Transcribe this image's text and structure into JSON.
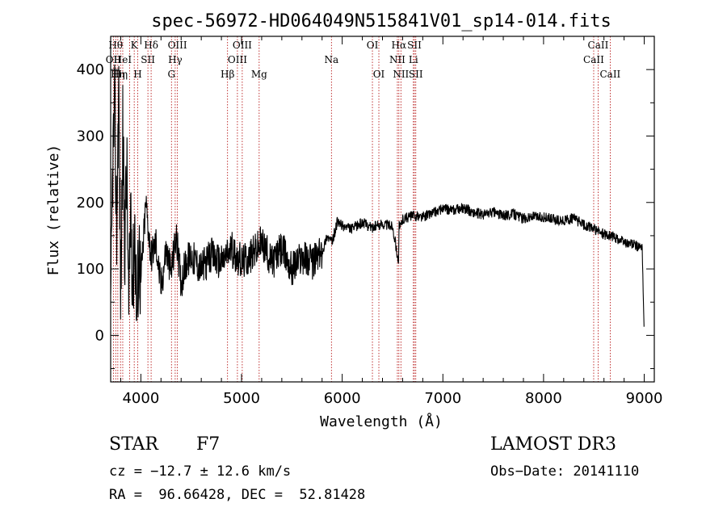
{
  "chart_data": {
    "type": "line",
    "title": "spec-56972-HD064049N515841V01_sp14-014.fits",
    "xlabel": "Wavelength (Å)",
    "ylabel": "Flux (relative)",
    "xlim": [
      3700,
      9100
    ],
    "ylim": [
      -70,
      450
    ],
    "xticks": [
      4000,
      5000,
      6000,
      7000,
      8000,
      9000
    ],
    "xtick_labels": [
      "4000",
      "5000",
      "6000",
      "7000",
      "8000",
      "9000"
    ],
    "yticks": [
      0,
      100,
      200,
      300,
      400
    ],
    "ytick_labels": [
      "0",
      "100",
      "200",
      "300",
      "400"
    ],
    "series": [
      {
        "name": "flux",
        "x": [
          3700,
          3720,
          3740,
          3760,
          3780,
          3800,
          3820,
          3840,
          3860,
          3880,
          3900,
          3920,
          3940,
          3960,
          3980,
          4000,
          4050,
          4100,
          4150,
          4200,
          4250,
          4300,
          4350,
          4400,
          4450,
          4500,
          4600,
          4700,
          4800,
          4900,
          5000,
          5100,
          5200,
          5300,
          5400,
          5500,
          5600,
          5700,
          5800,
          5850,
          5900,
          5950,
          6000,
          6100,
          6200,
          6300,
          6400,
          6500,
          6560,
          6565,
          6570,
          6600,
          6700,
          6800,
          6900,
          7000,
          7100,
          7200,
          7300,
          7400,
          7500,
          7600,
          7700,
          7800,
          7900,
          8000,
          8100,
          8200,
          8300,
          8400,
          8500,
          8600,
          8700,
          8800,
          8900,
          8980,
          9000
        ],
        "y": [
          0,
          260,
          340,
          160,
          380,
          60,
          300,
          140,
          250,
          20,
          210,
          70,
          170,
          20,
          140,
          80,
          200,
          120,
          140,
          70,
          130,
          95,
          150,
          80,
          110,
          120,
          100,
          120,
          110,
          130,
          110,
          120,
          140,
          110,
          130,
          100,
          120,
          110,
          125,
          150,
          140,
          170,
          165,
          160,
          170,
          162,
          168,
          165,
          110,
          168,
          160,
          175,
          180,
          178,
          185,
          190,
          188,
          192,
          185,
          182,
          186,
          180,
          183,
          176,
          179,
          178,
          174,
          172,
          176,
          166,
          160,
          152,
          148,
          140,
          136,
          130,
          0
        ]
      }
    ],
    "line_markers": [
      {
        "wavelength": 3727,
        "label": "OII",
        "row": 1
      },
      {
        "wavelength": 3750,
        "label": "Hθ",
        "row": 0
      },
      {
        "wavelength": 3771,
        "label": "Hη",
        "row": 2
      },
      {
        "wavelength": 3798,
        "label": "Hη",
        "row": 2
      },
      {
        "wavelength": 3820,
        "label": "HeI",
        "row": 1
      },
      {
        "wavelength": 3889,
        "label": "",
        "row": 0
      },
      {
        "wavelength": 3934,
        "label": "K",
        "row": 0
      },
      {
        "wavelength": 3969,
        "label": "H",
        "row": 2
      },
      {
        "wavelength": 4070,
        "label": "SII",
        "row": 1
      },
      {
        "wavelength": 4102,
        "label": "Hδ",
        "row": 0
      },
      {
        "wavelength": 4304,
        "label": "G",
        "row": 2
      },
      {
        "wavelength": 4341,
        "label": "Hγ",
        "row": 1
      },
      {
        "wavelength": 4363,
        "label": "OIII",
        "row": 0
      },
      {
        "wavelength": 4861,
        "label": "Hβ",
        "row": 2
      },
      {
        "wavelength": 4959,
        "label": "OIII",
        "row": 1
      },
      {
        "wavelength": 5007,
        "label": "OIII",
        "row": 0
      },
      {
        "wavelength": 5175,
        "label": "Mg",
        "row": 2
      },
      {
        "wavelength": 5893,
        "label": "Na",
        "row": 1
      },
      {
        "wavelength": 6300,
        "label": "OI",
        "row": 0
      },
      {
        "wavelength": 6364,
        "label": "OI",
        "row": 2
      },
      {
        "wavelength": 6548,
        "label": "NII",
        "row": 1
      },
      {
        "wavelength": 6563,
        "label": "Hα",
        "row": 0
      },
      {
        "wavelength": 6583,
        "label": "NII",
        "row": 2
      },
      {
        "wavelength": 6707,
        "label": "Li",
        "row": 1
      },
      {
        "wavelength": 6717,
        "label": "SII",
        "row": 0
      },
      {
        "wavelength": 6731,
        "label": "SII",
        "row": 2
      },
      {
        "wavelength": 8498,
        "label": "CaII",
        "row": 1
      },
      {
        "wavelength": 8542,
        "label": "CaII",
        "row": 0
      },
      {
        "wavelength": 8662,
        "label": "CaII",
        "row": 2
      }
    ]
  },
  "info": {
    "object_class": "STAR",
    "subclass": "F7",
    "survey": "LAMOST DR3",
    "redshift": "cz = −12.7 ± 12.6 km/s",
    "obs_date": "Obs−Date: 20141110",
    "coords": "RA =  96.66428, DEC =  52.81428"
  },
  "colors": {
    "spectrum": "#000000",
    "line_marker": "#b00000",
    "axes": "#000000"
  }
}
